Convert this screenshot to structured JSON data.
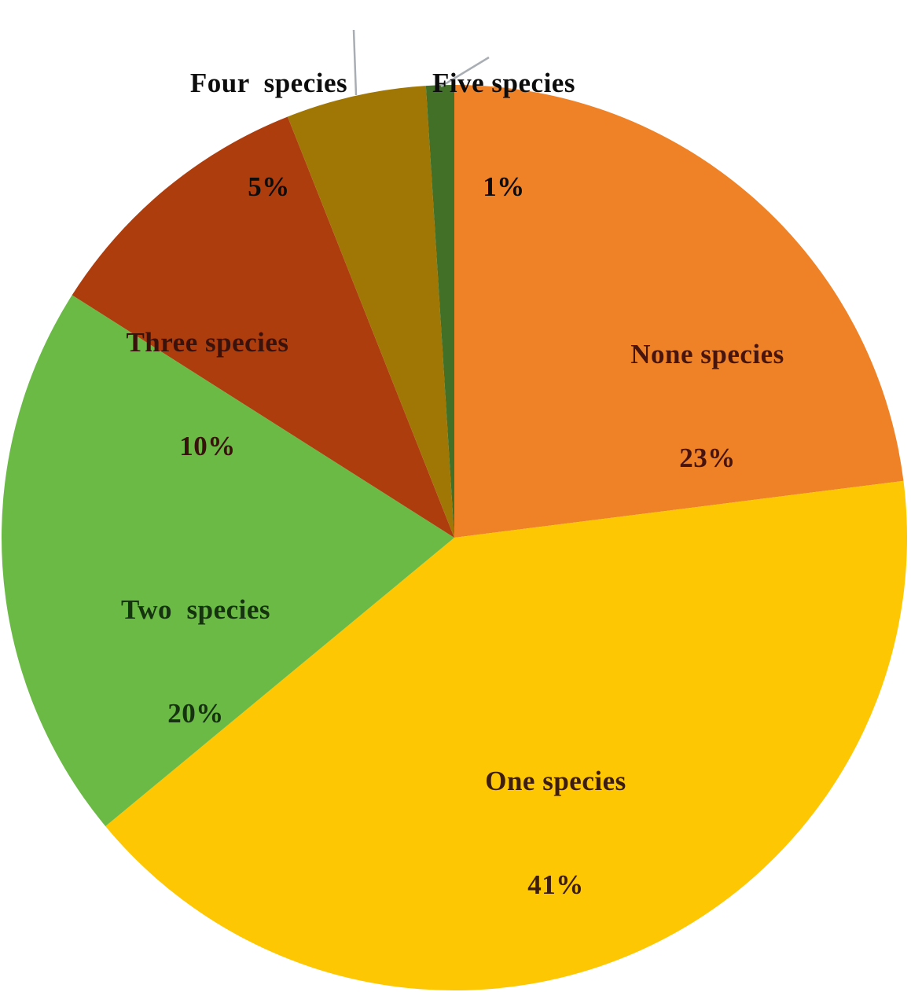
{
  "chart_data": {
    "type": "pie",
    "title": "",
    "legend": "none",
    "background": "#ffffff",
    "leader_line_color": "#a9aeb4",
    "start_angle_deg": 0,
    "direction": "clockwise",
    "categories": [
      "None species",
      "One species",
      "Two  species",
      "Three species",
      "Four  species",
      "Five species"
    ],
    "values": [
      23,
      41,
      20,
      10,
      5,
      1
    ],
    "slices": [
      {
        "label": "None species",
        "pct_label": "23%",
        "value": 23,
        "color": "#EF8227",
        "text_color": "#47140e",
        "label_placement": "inside"
      },
      {
        "label": "One species",
        "pct_label": "41%",
        "value": 41,
        "color": "#FDC703",
        "text_color": "#3c1d0e",
        "label_placement": "inside"
      },
      {
        "label": "Two  species",
        "pct_label": "20%",
        "value": 20,
        "color": "#6BBA46",
        "text_color": "#16330f",
        "label_placement": "inside"
      },
      {
        "label": "Three species",
        "pct_label": "10%",
        "value": 10,
        "color": "#AE3D0E",
        "text_color": "#38120b",
        "label_placement": "inside"
      },
      {
        "label": "Four  species",
        "pct_label": "5%",
        "value": 5,
        "color": "#A07604",
        "text_color": "#0d0d0d",
        "label_placement": "outside"
      },
      {
        "label": "Five species",
        "pct_label": "1%",
        "value": 1,
        "color": "#417026",
        "text_color": "#0d0d0d",
        "label_placement": "outside"
      }
    ]
  }
}
